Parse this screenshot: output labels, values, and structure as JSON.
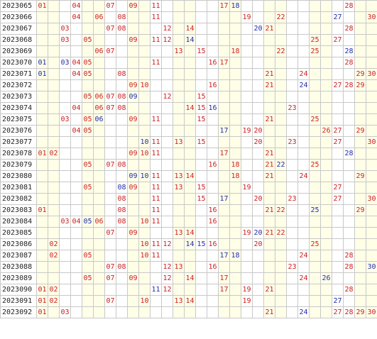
{
  "columns": [
    "01",
    "02",
    "03",
    "04",
    "05",
    "06",
    "07",
    "08",
    "09",
    "10",
    "11",
    "12",
    "13",
    "14",
    "15",
    "16",
    "17",
    "18",
    "19",
    "20",
    "21",
    "22",
    "23",
    "24",
    "25",
    "26",
    "27",
    "28",
    "29",
    "30"
  ],
  "band_columns": [
    1,
    2,
    5,
    6,
    9,
    10,
    13,
    14,
    17,
    18,
    21,
    22,
    25,
    26,
    29,
    30
  ],
  "colors": {
    "red": "#cc1f1f",
    "blue": "#1f2fa8",
    "band": "#ffffe8",
    "grid": "#c8c8c8"
  },
  "rows": [
    {
      "period": "2023065",
      "red": [
        1,
        4,
        7,
        9,
        11,
        17,
        28
      ],
      "blue": [
        18
      ]
    },
    {
      "period": "2023066",
      "red": [
        4,
        6,
        8,
        11,
        19,
        22,
        30
      ],
      "blue": [
        27
      ]
    },
    {
      "period": "2023067",
      "red": [
        3,
        7,
        8,
        12,
        14,
        21,
        28
      ],
      "blue": [
        20
      ]
    },
    {
      "period": "2023068",
      "red": [
        3,
        5,
        9,
        11,
        12,
        25,
        27
      ],
      "blue": [
        14
      ]
    },
    {
      "period": "2023069",
      "red": [
        6,
        7,
        13,
        15,
        18,
        22,
        25
      ],
      "blue": [
        28
      ]
    },
    {
      "period": "2023070",
      "red": [
        4,
        5,
        11,
        16,
        17,
        28
      ],
      "blue": [
        1,
        3
      ]
    },
    {
      "period": "2023071",
      "red": [
        4,
        5,
        8,
        21,
        24,
        29,
        30
      ],
      "blue": [
        1
      ]
    },
    {
      "period": "2023072",
      "red": [
        9,
        10,
        16,
        21,
        27,
        28,
        29
      ],
      "blue": [
        24
      ]
    },
    {
      "period": "2023073",
      "red": [
        5,
        6,
        7,
        8,
        12,
        15
      ],
      "blue": [
        9
      ]
    },
    {
      "period": "2023074",
      "red": [
        4,
        6,
        7,
        8,
        14,
        15,
        23
      ],
      "blue": [
        16
      ]
    },
    {
      "period": "2023075",
      "red": [
        3,
        5,
        9,
        11,
        15,
        21,
        25
      ],
      "blue": [
        6
      ]
    },
    {
      "period": "2023076",
      "red": [
        4,
        5,
        19,
        20,
        26,
        27,
        29
      ],
      "blue": [
        17
      ]
    },
    {
      "period": "2023077",
      "red": [
        11,
        13,
        15,
        20,
        23,
        27,
        30
      ],
      "blue": [
        10
      ]
    },
    {
      "period": "2023078",
      "red": [
        1,
        2,
        9,
        10,
        11,
        17,
        21
      ],
      "blue": [
        28
      ]
    },
    {
      "period": "2023079",
      "red": [
        5,
        7,
        8,
        16,
        18,
        21,
        25
      ],
      "blue": [
        22
      ]
    },
    {
      "period": "2023080",
      "red": [
        11,
        13,
        14,
        18,
        21,
        24,
        29
      ],
      "blue": [
        9,
        10
      ]
    },
    {
      "period": "2023081",
      "red": [
        5,
        9,
        11,
        13,
        15,
        19,
        27
      ],
      "blue": [
        8
      ]
    },
    {
      "period": "2023082",
      "red": [
        8,
        11,
        15,
        20,
        23,
        27,
        30
      ],
      "blue": [
        17
      ]
    },
    {
      "period": "2023083",
      "red": [
        1,
        8,
        11,
        16,
        21,
        22,
        29
      ],
      "blue": [
        25
      ]
    },
    {
      "period": "2023084",
      "red": [
        3,
        4,
        6,
        8,
        10,
        11,
        16
      ],
      "blue": [
        5
      ]
    },
    {
      "period": "2023085",
      "red": [
        7,
        9,
        13,
        14,
        19,
        21,
        22
      ],
      "blue": [
        20
      ]
    },
    {
      "period": "2023086",
      "red": [
        2,
        10,
        11,
        12,
        16,
        20,
        25
      ],
      "blue": [
        14,
        15
      ]
    },
    {
      "period": "2023087",
      "red": [
        2,
        5,
        10,
        11,
        24,
        28
      ],
      "blue": [
        17,
        18
      ]
    },
    {
      "period": "2023088",
      "red": [
        7,
        8,
        12,
        13,
        16,
        23,
        28
      ],
      "blue": [
        30
      ]
    },
    {
      "period": "2023089",
      "red": [
        5,
        7,
        9,
        12,
        14,
        17,
        24
      ],
      "blue": [
        26
      ]
    },
    {
      "period": "2023090",
      "red": [
        1,
        2,
        12,
        17,
        19,
        21,
        28
      ],
      "blue": [
        11
      ]
    },
    {
      "period": "2023091",
      "red": [
        1,
        2,
        7,
        10,
        13,
        14,
        19
      ],
      "blue": [
        27
      ]
    },
    {
      "period": "2023092",
      "red": [
        1,
        3,
        21,
        27,
        28,
        29,
        30
      ],
      "blue": [
        24
      ]
    }
  ]
}
